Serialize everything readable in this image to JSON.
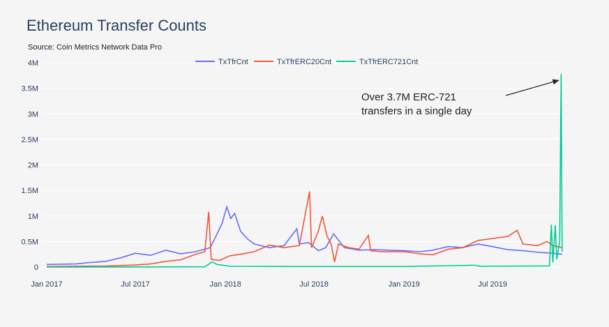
{
  "chart_data": {
    "type": "line",
    "title": "Ethereum Transfer Counts",
    "subtitle": "Source: Coin Metrics Network Data Pro",
    "xlabel": "",
    "ylabel": "",
    "ylim": [
      0,
      4000000
    ],
    "yticks": [
      {
        "v": 0,
        "label": "0"
      },
      {
        "v": 500000,
        "label": "0.5M"
      },
      {
        "v": 1000000,
        "label": "1M"
      },
      {
        "v": 1500000,
        "label": "1.5M"
      },
      {
        "v": 2000000,
        "label": "2M"
      },
      {
        "v": 2500000,
        "label": "2.5M"
      },
      {
        "v": 3000000,
        "label": "3M"
      },
      {
        "v": 3500000,
        "label": "3.5M"
      },
      {
        "v": 4000000,
        "label": "4M"
      }
    ],
    "xticks": [
      {
        "v": "2017-01-01",
        "label": "Jan 2017"
      },
      {
        "v": "2017-07-01",
        "label": "Jul 2017"
      },
      {
        "v": "2018-01-01",
        "label": "Jan 2018"
      },
      {
        "v": "2018-07-01",
        "label": "Jul 2018"
      },
      {
        "v": "2019-01-01",
        "label": "Jan 2019"
      },
      {
        "v": "2019-07-01",
        "label": "Jul 2019"
      }
    ],
    "xlim": [
      "2017-01-01",
      "2019-11-20"
    ],
    "grid": true,
    "legend_position": "top",
    "series": [
      {
        "name": "TxTfrCnt",
        "color": "#636efa",
        "points": [
          [
            "2017-01-01",
            50000
          ],
          [
            "2017-03-01",
            60000
          ],
          [
            "2017-04-01",
            90000
          ],
          [
            "2017-05-01",
            110000
          ],
          [
            "2017-06-01",
            180000
          ],
          [
            "2017-07-01",
            270000
          ],
          [
            "2017-08-01",
            230000
          ],
          [
            "2017-09-01",
            330000
          ],
          [
            "2017-10-01",
            260000
          ],
          [
            "2017-11-01",
            300000
          ],
          [
            "2017-12-01",
            380000
          ],
          [
            "2017-12-10",
            550000
          ],
          [
            "2017-12-25",
            850000
          ],
          [
            "2018-01-04",
            1180000
          ],
          [
            "2018-01-12",
            950000
          ],
          [
            "2018-01-20",
            1050000
          ],
          [
            "2018-02-01",
            700000
          ],
          [
            "2018-02-15",
            550000
          ],
          [
            "2018-03-01",
            450000
          ],
          [
            "2018-04-01",
            380000
          ],
          [
            "2018-05-01",
            420000
          ],
          [
            "2018-05-27",
            750000
          ],
          [
            "2018-06-01",
            450000
          ],
          [
            "2018-06-20",
            480000
          ],
          [
            "2018-07-10",
            320000
          ],
          [
            "2018-07-25",
            380000
          ],
          [
            "2018-08-10",
            650000
          ],
          [
            "2018-09-01",
            380000
          ],
          [
            "2018-10-01",
            330000
          ],
          [
            "2018-11-01",
            340000
          ],
          [
            "2018-12-01",
            330000
          ],
          [
            "2019-01-01",
            320000
          ],
          [
            "2019-02-01",
            300000
          ],
          [
            "2019-03-01",
            330000
          ],
          [
            "2019-04-01",
            400000
          ],
          [
            "2019-05-01",
            380000
          ],
          [
            "2019-06-01",
            450000
          ],
          [
            "2019-07-01",
            400000
          ],
          [
            "2019-08-01",
            340000
          ],
          [
            "2019-09-01",
            320000
          ],
          [
            "2019-10-01",
            290000
          ],
          [
            "2019-11-01",
            270000
          ],
          [
            "2019-11-20",
            250000
          ]
        ]
      },
      {
        "name": "TxTfrERC20Cnt",
        "color": "#ef553b",
        "points": [
          [
            "2017-01-01",
            10000
          ],
          [
            "2017-05-01",
            20000
          ],
          [
            "2017-07-01",
            40000
          ],
          [
            "2017-08-01",
            60000
          ],
          [
            "2017-09-01",
            110000
          ],
          [
            "2017-10-01",
            140000
          ],
          [
            "2017-11-01",
            250000
          ],
          [
            "2017-11-20",
            300000
          ],
          [
            "2017-11-28",
            1080000
          ],
          [
            "2017-12-03",
            150000
          ],
          [
            "2017-12-20",
            130000
          ],
          [
            "2018-01-10",
            220000
          ],
          [
            "2018-02-01",
            250000
          ],
          [
            "2018-03-01",
            300000
          ],
          [
            "2018-04-01",
            430000
          ],
          [
            "2018-05-01",
            380000
          ],
          [
            "2018-06-01",
            420000
          ],
          [
            "2018-06-22",
            1480000
          ],
          [
            "2018-06-26",
            380000
          ],
          [
            "2018-07-10",
            700000
          ],
          [
            "2018-07-18",
            1000000
          ],
          [
            "2018-07-28",
            600000
          ],
          [
            "2018-08-05",
            450000
          ],
          [
            "2018-08-12",
            100000
          ],
          [
            "2018-08-20",
            450000
          ],
          [
            "2018-09-10",
            380000
          ],
          [
            "2018-10-01",
            350000
          ],
          [
            "2018-10-20",
            620000
          ],
          [
            "2018-10-25",
            320000
          ],
          [
            "2018-11-15",
            300000
          ],
          [
            "2019-01-01",
            300000
          ],
          [
            "2019-02-01",
            260000
          ],
          [
            "2019-03-01",
            240000
          ],
          [
            "2019-04-01",
            350000
          ],
          [
            "2019-05-01",
            380000
          ],
          [
            "2019-06-01",
            520000
          ],
          [
            "2019-07-01",
            560000
          ],
          [
            "2019-08-01",
            600000
          ],
          [
            "2019-08-20",
            720000
          ],
          [
            "2019-09-01",
            450000
          ],
          [
            "2019-10-01",
            420000
          ],
          [
            "2019-10-20",
            500000
          ],
          [
            "2019-11-01",
            420000
          ],
          [
            "2019-11-20",
            380000
          ]
        ]
      },
      {
        "name": "TxTfrERC721Cnt",
        "color": "#00cc96",
        "points": [
          [
            "2017-01-01",
            0
          ],
          [
            "2017-11-20",
            5000
          ],
          [
            "2017-12-05",
            100000
          ],
          [
            "2017-12-15",
            50000
          ],
          [
            "2018-01-10",
            15000
          ],
          [
            "2018-06-01",
            10000
          ],
          [
            "2019-01-01",
            10000
          ],
          [
            "2019-05-25",
            35000
          ],
          [
            "2019-06-05",
            15000
          ],
          [
            "2019-10-25",
            20000
          ],
          [
            "2019-10-29",
            830000
          ],
          [
            "2019-11-01",
            90000
          ],
          [
            "2019-11-06",
            820000
          ],
          [
            "2019-11-09",
            150000
          ],
          [
            "2019-11-15",
            500000
          ],
          [
            "2019-11-18",
            3780000
          ],
          [
            "2019-11-20",
            300000
          ]
        ]
      }
    ],
    "annotation": {
      "line1": "Over 3.7M ERC-721",
      "line2": "transfers in a single day",
      "arrow_to": [
        "2019-11-18",
        3700000
      ]
    }
  }
}
